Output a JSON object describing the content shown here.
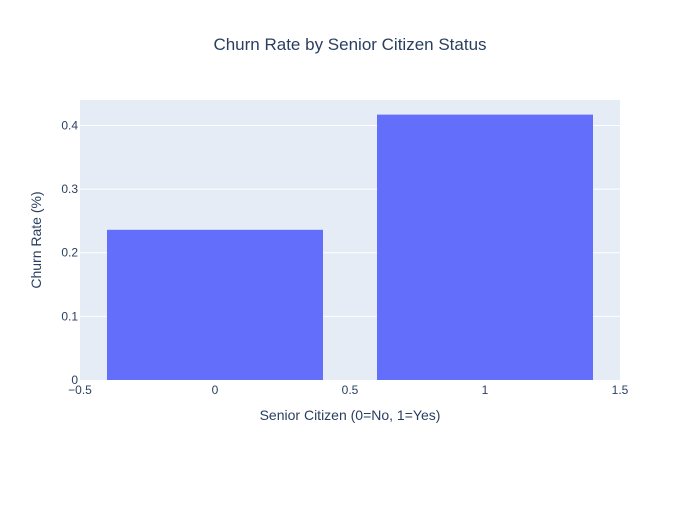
{
  "chart_data": {
    "type": "bar",
    "title": "Churn Rate by Senior Citizen Status",
    "xlabel": "Senior Citizen (0=No, 1=Yes)",
    "ylabel": "Churn Rate (%)",
    "x": [
      0,
      1
    ],
    "values": [
      0.236,
      0.417
    ],
    "bar_width": 0.8,
    "xlim": [
      -0.5,
      1.5
    ],
    "ylim": [
      0,
      0.44
    ],
    "xticks": [
      -0.5,
      0,
      0.5,
      1,
      1.5
    ],
    "xtick_labels": [
      "−0.5",
      "0",
      "0.5",
      "1",
      "1.5"
    ],
    "yticks": [
      0,
      0.1,
      0.2,
      0.3,
      0.4
    ],
    "ytick_labels": [
      "0",
      "0.1",
      "0.2",
      "0.3",
      "0.4"
    ],
    "grid": true,
    "colors": {
      "bar": "#636efa",
      "plot_bg": "#e5ecf6",
      "grid": "#ffffff",
      "text": "#2a3f5f",
      "tick_text": "#2a3f5f"
    }
  }
}
